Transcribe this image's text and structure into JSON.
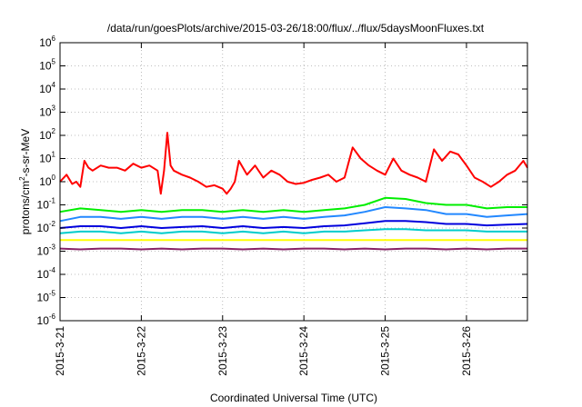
{
  "chart_data": {
    "type": "line",
    "title": "/data/run/goesPlots/archive/2015-03-26/18:00/flux/../flux/5daysMoonFluxes.txt",
    "xlabel": "Coordinated Universal Time (UTC)",
    "ylabel": "protons/cm2-s-sr-MeV",
    "ylabel_parts": {
      "base": "protons/cm",
      "sup": "2",
      "rest": "-s-sr-MeV"
    },
    "yscale": "log",
    "ylim": [
      1e-06,
      1000000.0
    ],
    "xlim": [
      0,
      5.75
    ],
    "x_unit": "days after 2015-3-21 00:00 UTC",
    "grid": true,
    "legend": "none",
    "yticks": [
      {
        "value": 1e-06,
        "base": "10",
        "exp": "-6"
      },
      {
        "value": 1e-05,
        "base": "10",
        "exp": "-5"
      },
      {
        "value": 0.0001,
        "base": "10",
        "exp": "-4"
      },
      {
        "value": 0.001,
        "base": "10",
        "exp": "-3"
      },
      {
        "value": 0.01,
        "base": "10",
        "exp": "-2"
      },
      {
        "value": 0.1,
        "base": "10",
        "exp": "-1"
      },
      {
        "value": 1.0,
        "base": "10",
        "exp": "0"
      },
      {
        "value": 10.0,
        "base": "10",
        "exp": "1"
      },
      {
        "value": 100.0,
        "base": "10",
        "exp": "2"
      },
      {
        "value": 1000.0,
        "base": "10",
        "exp": "3"
      },
      {
        "value": 10000.0,
        "base": "10",
        "exp": "4"
      },
      {
        "value": 100000.0,
        "base": "10",
        "exp": "5"
      },
      {
        "value": 1000000.0,
        "base": "10",
        "exp": "6"
      }
    ],
    "xticks": [
      {
        "value": 0,
        "label": "2015-3-21"
      },
      {
        "value": 1,
        "label": "2015-3-22"
      },
      {
        "value": 2,
        "label": "2015-3-23"
      },
      {
        "value": 3,
        "label": "2015-3-24"
      },
      {
        "value": 4,
        "label": "2015-3-25"
      },
      {
        "value": 5,
        "label": "2015-3-26"
      }
    ],
    "series": [
      {
        "color": "#ff0000",
        "x": [
          0,
          0.08,
          0.15,
          0.2,
          0.25,
          0.3,
          0.35,
          0.4,
          0.5,
          0.6,
          0.7,
          0.8,
          0.9,
          1.0,
          1.1,
          1.2,
          1.24,
          1.28,
          1.32,
          1.36,
          1.4,
          1.5,
          1.6,
          1.7,
          1.8,
          1.9,
          2.0,
          2.05,
          2.1,
          2.15,
          2.2,
          2.3,
          2.4,
          2.5,
          2.6,
          2.7,
          2.8,
          2.9,
          3.0,
          3.1,
          3.2,
          3.3,
          3.4,
          3.5,
          3.6,
          3.7,
          3.8,
          3.9,
          4.0,
          4.1,
          4.2,
          4.3,
          4.4,
          4.5,
          4.6,
          4.7,
          4.8,
          4.9,
          5.0,
          5.1,
          5.2,
          5.3,
          5.4,
          5.5,
          5.6,
          5.7,
          5.75
        ],
        "y": [
          1.0,
          2.0,
          0.8,
          1.0,
          0.6,
          8.0,
          4.0,
          3.0,
          5.0,
          4.0,
          4.0,
          3.0,
          6.0,
          4.0,
          5.0,
          3.0,
          0.3,
          3.0,
          130,
          5.0,
          3.0,
          2.0,
          1.5,
          1.0,
          0.6,
          0.7,
          0.5,
          0.3,
          0.5,
          1.0,
          8.0,
          2.0,
          5.0,
          1.5,
          3.0,
          2.0,
          1.0,
          0.8,
          0.9,
          1.2,
          1.5,
          2.0,
          1.0,
          1.5,
          30.0,
          10.0,
          5.0,
          3.0,
          2.0,
          10.0,
          3.0,
          2.0,
          1.5,
          1.0,
          25.0,
          8.0,
          20.0,
          15.0,
          5.0,
          1.5,
          1.0,
          0.6,
          1.0,
          2.0,
          3.0,
          8.0,
          4.0
        ]
      },
      {
        "color": "#00ee00",
        "x": [
          0,
          0.25,
          0.5,
          0.75,
          1.0,
          1.25,
          1.5,
          1.75,
          2.0,
          2.25,
          2.5,
          2.75,
          3.0,
          3.25,
          3.5,
          3.75,
          4.0,
          4.25,
          4.5,
          4.75,
          5.0,
          5.25,
          5.5,
          5.75
        ],
        "y": [
          0.05,
          0.07,
          0.06,
          0.05,
          0.06,
          0.05,
          0.06,
          0.06,
          0.05,
          0.06,
          0.05,
          0.06,
          0.05,
          0.06,
          0.07,
          0.1,
          0.2,
          0.18,
          0.12,
          0.1,
          0.1,
          0.07,
          0.08,
          0.08
        ]
      },
      {
        "color": "#2288ff",
        "x": [
          0,
          0.25,
          0.5,
          0.75,
          1.0,
          1.25,
          1.5,
          1.75,
          2.0,
          2.25,
          2.5,
          2.75,
          3.0,
          3.25,
          3.5,
          3.75,
          4.0,
          4.25,
          4.5,
          4.75,
          5.0,
          5.25,
          5.5,
          5.75
        ],
        "y": [
          0.02,
          0.03,
          0.03,
          0.025,
          0.03,
          0.025,
          0.03,
          0.03,
          0.025,
          0.03,
          0.025,
          0.03,
          0.025,
          0.03,
          0.035,
          0.05,
          0.08,
          0.07,
          0.06,
          0.04,
          0.04,
          0.03,
          0.035,
          0.04
        ]
      },
      {
        "color": "#0000dd",
        "x": [
          0,
          0.25,
          0.5,
          0.75,
          1.0,
          1.25,
          1.5,
          1.75,
          2.0,
          2.25,
          2.5,
          2.75,
          3.0,
          3.25,
          3.5,
          3.75,
          4.0,
          4.25,
          4.5,
          4.75,
          5.0,
          5.25,
          5.5,
          5.75
        ],
        "y": [
          0.01,
          0.012,
          0.012,
          0.01,
          0.012,
          0.01,
          0.011,
          0.012,
          0.01,
          0.012,
          0.01,
          0.011,
          0.01,
          0.012,
          0.013,
          0.016,
          0.02,
          0.02,
          0.018,
          0.015,
          0.015,
          0.013,
          0.014,
          0.015
        ]
      },
      {
        "color": "#00cccc",
        "x": [
          0,
          0.25,
          0.5,
          0.75,
          1.0,
          1.25,
          1.5,
          1.75,
          2.0,
          2.25,
          2.5,
          2.75,
          3.0,
          3.25,
          3.5,
          3.75,
          4.0,
          4.25,
          4.5,
          4.75,
          5.0,
          5.25,
          5.5,
          5.75
        ],
        "y": [
          0.006,
          0.007,
          0.007,
          0.006,
          0.007,
          0.006,
          0.007,
          0.007,
          0.006,
          0.007,
          0.006,
          0.007,
          0.006,
          0.007,
          0.007,
          0.008,
          0.009,
          0.009,
          0.008,
          0.008,
          0.008,
          0.007,
          0.007,
          0.007
        ]
      },
      {
        "color": "#ffff00",
        "x": [
          0,
          0.25,
          0.5,
          0.75,
          1.0,
          1.25,
          1.5,
          1.75,
          2.0,
          2.25,
          2.5,
          2.75,
          3.0,
          3.25,
          3.5,
          3.75,
          4.0,
          4.25,
          4.5,
          4.75,
          5.0,
          5.25,
          5.5,
          5.75
        ],
        "y": [
          0.003,
          0.003,
          0.003,
          0.003,
          0.003,
          0.003,
          0.003,
          0.003,
          0.003,
          0.003,
          0.003,
          0.003,
          0.003,
          0.003,
          0.003,
          0.003,
          0.003,
          0.003,
          0.003,
          0.003,
          0.003,
          0.003,
          0.003,
          0.003
        ]
      },
      {
        "color": "#882266",
        "x": [
          0,
          0.25,
          0.5,
          0.75,
          1.0,
          1.25,
          1.5,
          1.75,
          2.0,
          2.25,
          2.5,
          2.75,
          3.0,
          3.25,
          3.5,
          3.75,
          4.0,
          4.25,
          4.5,
          4.75,
          5.0,
          5.25,
          5.5,
          5.75
        ],
        "y": [
          0.0013,
          0.0012,
          0.0013,
          0.0013,
          0.0012,
          0.0013,
          0.0012,
          0.0013,
          0.0013,
          0.0012,
          0.0013,
          0.0012,
          0.0013,
          0.0013,
          0.0012,
          0.0013,
          0.0012,
          0.0013,
          0.0013,
          0.0012,
          0.0013,
          0.0012,
          0.0013,
          0.0013
        ]
      }
    ]
  }
}
